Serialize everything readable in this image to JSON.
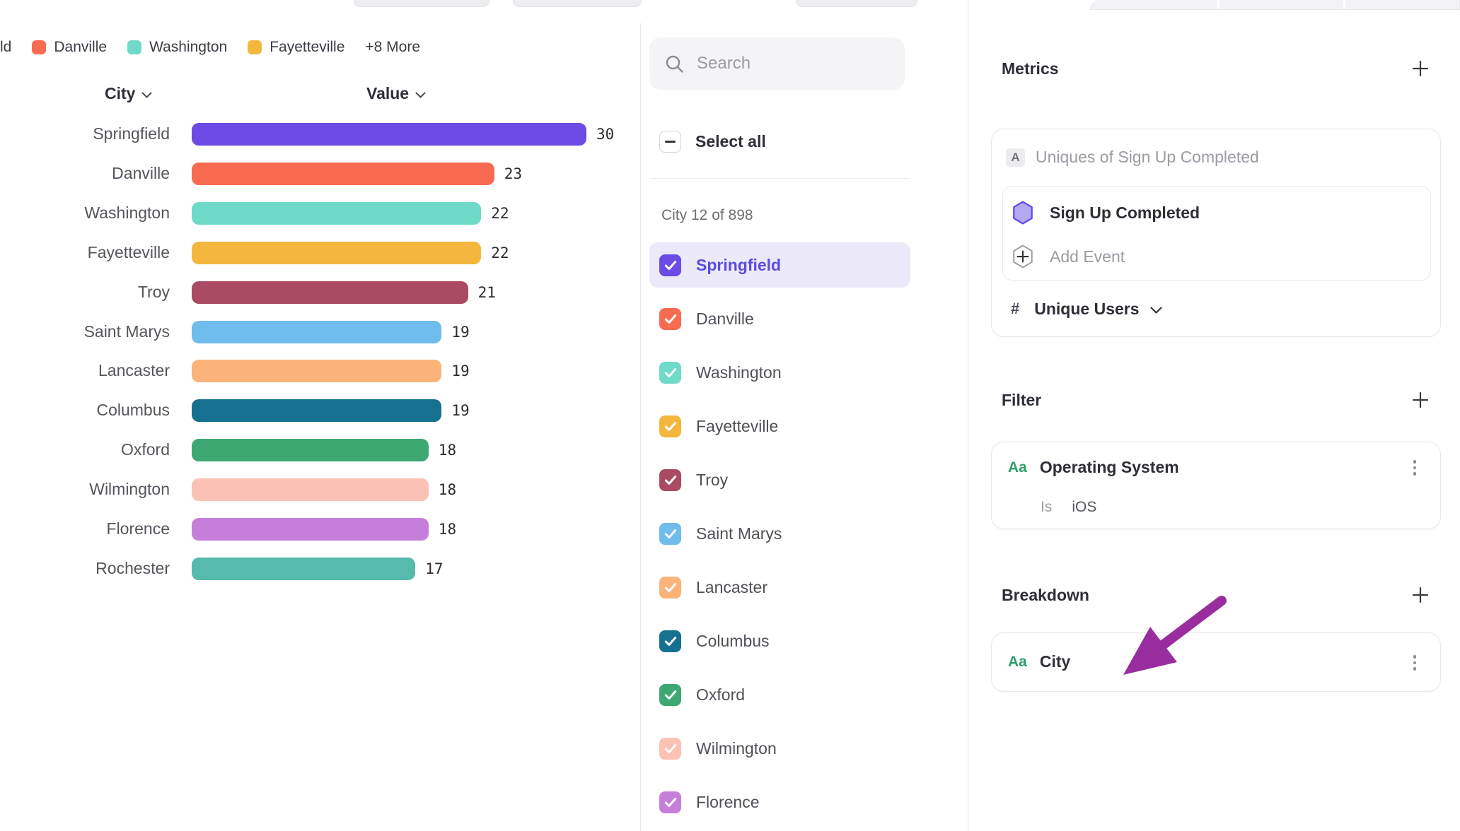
{
  "chart_data": {
    "type": "bar",
    "orientation": "horizontal",
    "title": "",
    "column_headers": {
      "category": "City",
      "value": "Value"
    },
    "legend": {
      "truncated_label": "ld",
      "items": [
        {
          "label": "Danville",
          "color": "#F96B51"
        },
        {
          "label": "Washington",
          "color": "#6FDAC8"
        },
        {
          "label": "Fayetteville",
          "color": "#F4B73E"
        }
      ],
      "overflow_label": "+8 More"
    },
    "categories": [
      "Springfield",
      "Danville",
      "Washington",
      "Fayetteville",
      "Troy",
      "Saint Marys",
      "Lancaster",
      "Columbus",
      "Oxford",
      "Wilmington",
      "Florence",
      "Rochester"
    ],
    "values": [
      30,
      23,
      22,
      22,
      21,
      19,
      19,
      19,
      18,
      18,
      18,
      17
    ],
    "bar_colors": [
      "#6B4BE4",
      "#F96B51",
      "#6FDAC8",
      "#F4B73E",
      "#AB4B63",
      "#70BCEC",
      "#FBB379",
      "#16708F",
      "#3EA873",
      "#FBC1B5",
      "#C67EDB",
      "#56BBAC"
    ],
    "xlim": [
      0,
      30
    ]
  },
  "city_selector": {
    "search_placeholder": "Search",
    "select_all_label": "Select all",
    "count_label": "City 12 of 898",
    "selected_row_bg": "#ECE9FB",
    "selected_text_color": "#5B4CE0",
    "items": [
      {
        "label": "Springfield",
        "color": "#6B4BE4",
        "checked": true,
        "selected": true
      },
      {
        "label": "Danville",
        "color": "#F96B51",
        "checked": true,
        "selected": false
      },
      {
        "label": "Washington",
        "color": "#6FDAC8",
        "checked": true,
        "selected": false
      },
      {
        "label": "Fayetteville",
        "color": "#F4B73E",
        "checked": true,
        "selected": false
      },
      {
        "label": "Troy",
        "color": "#AB4B63",
        "checked": true,
        "selected": false
      },
      {
        "label": "Saint Marys",
        "color": "#70BCEC",
        "checked": true,
        "selected": false
      },
      {
        "label": "Lancaster",
        "color": "#FBB379",
        "checked": true,
        "selected": false
      },
      {
        "label": "Columbus",
        "color": "#16708F",
        "checked": true,
        "selected": false
      },
      {
        "label": "Oxford",
        "color": "#3EA873",
        "checked": true,
        "selected": false
      },
      {
        "label": "Wilmington",
        "color": "#FBC1B5",
        "checked": true,
        "selected": false
      },
      {
        "label": "Florence",
        "color": "#C67EDB",
        "checked": true,
        "selected": false
      }
    ]
  },
  "inspector": {
    "metrics": {
      "heading": "Metrics",
      "badge": "A",
      "summary": "Uniques of Sign Up Completed",
      "event_name": "Sign Up Completed",
      "event_icon_fill": "#B2A9F1",
      "event_icon_stroke": "#5B48E8",
      "add_event_label": "Add Event",
      "measure_symbol": "#",
      "measure_label": "Unique Users"
    },
    "filter": {
      "heading": "Filter",
      "type_badge": "Aa",
      "type_badge_color": "#2F9E68",
      "property": "Operating System",
      "operator": "Is",
      "value": "iOS"
    },
    "breakdown": {
      "heading": "Breakdown",
      "type_badge": "Aa",
      "type_badge_color": "#2F9E68",
      "property": "City"
    },
    "annotation_arrow_color": "#992D9E"
  }
}
